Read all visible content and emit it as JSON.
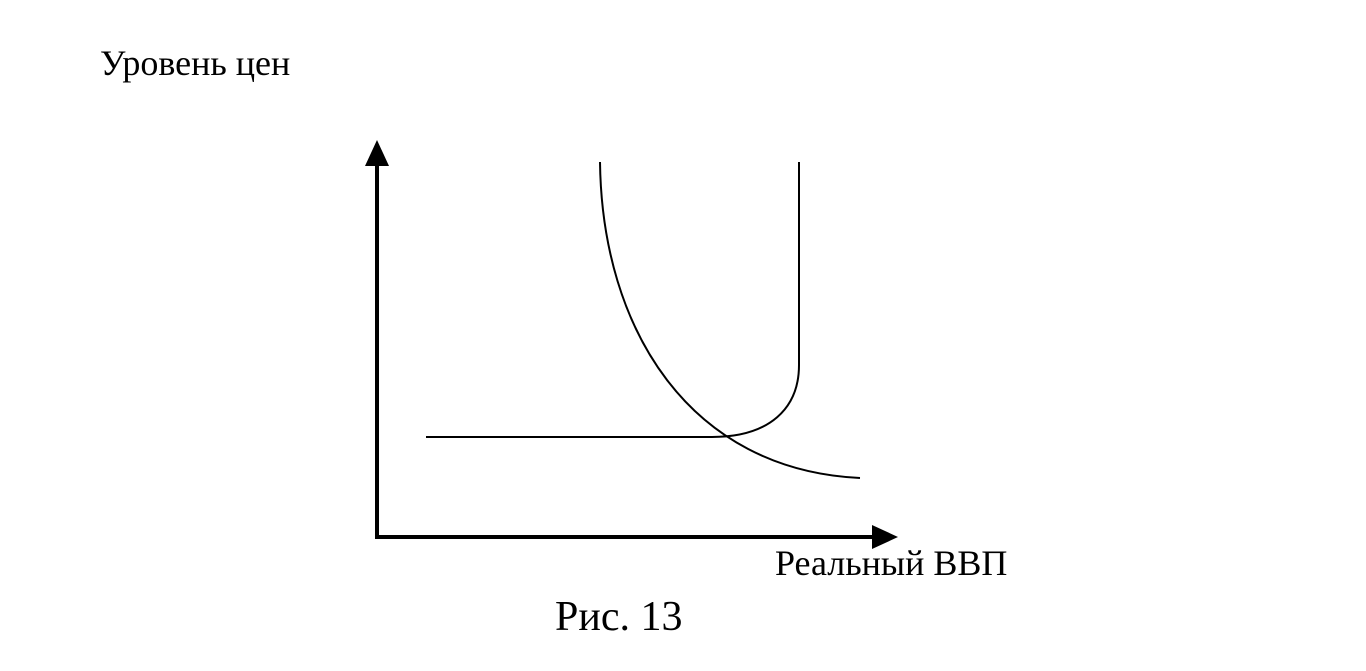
{
  "y_axis": {
    "label": "Уровень цен"
  },
  "x_axis": {
    "label": "Реальный ВВП"
  },
  "caption": "Рис. 13"
}
